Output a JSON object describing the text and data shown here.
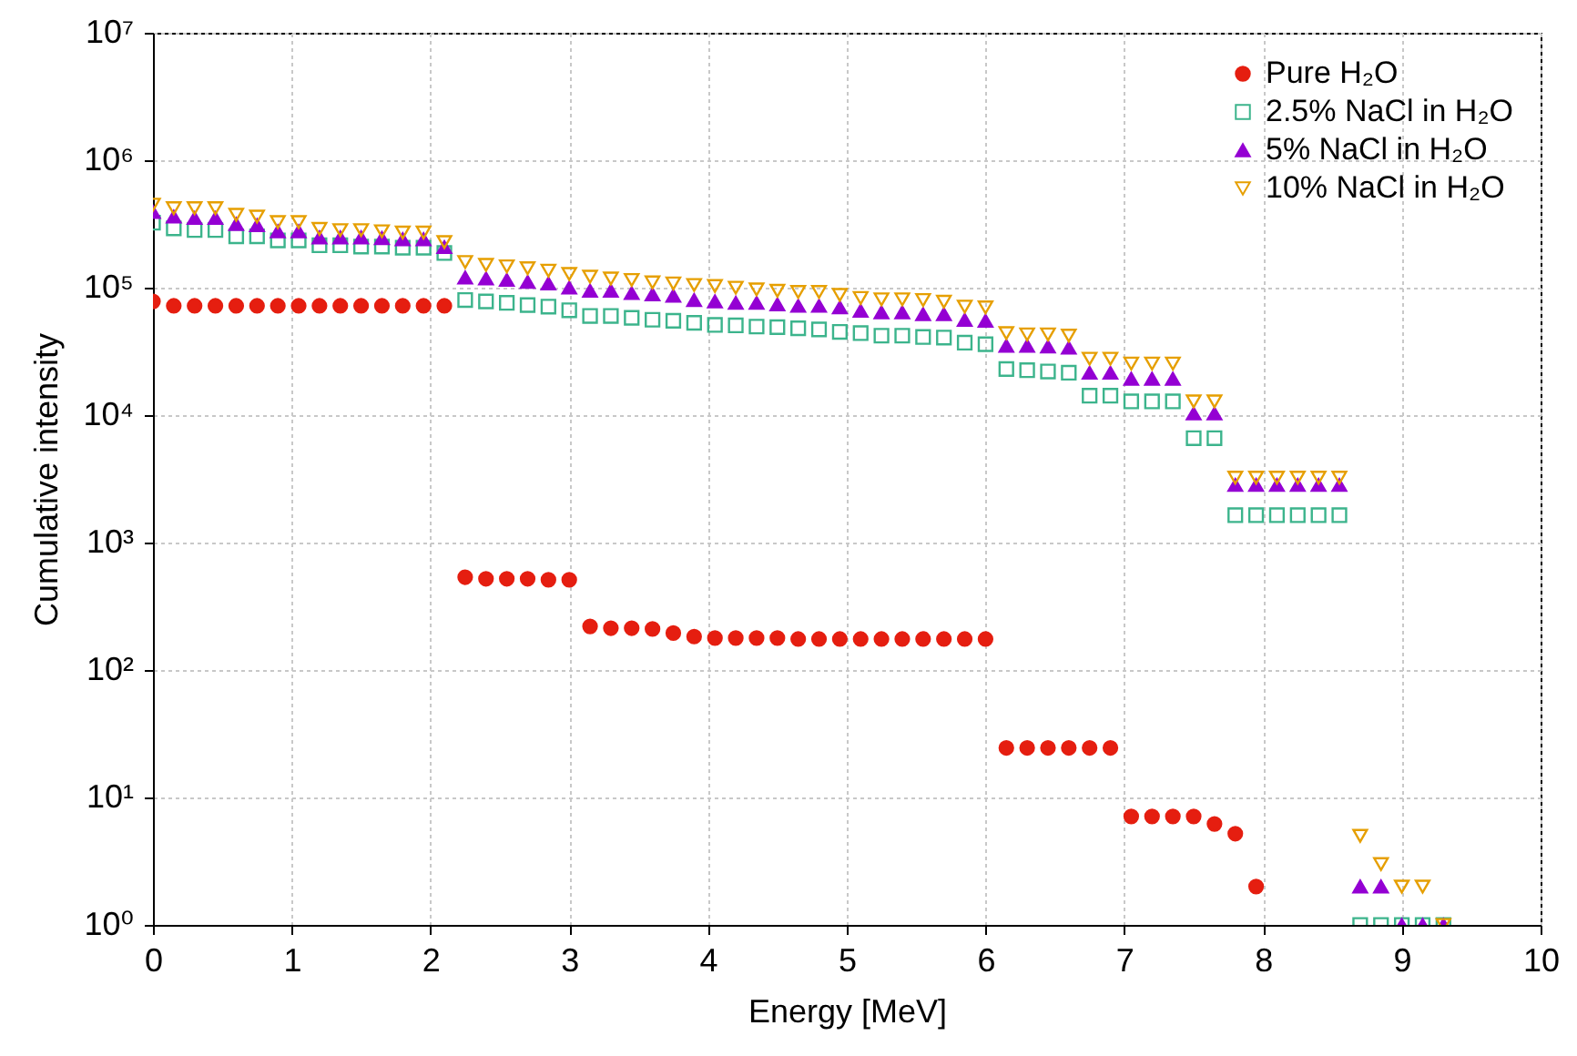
{
  "chart_data": {
    "type": "scatter",
    "xlabel": "Energy [MeV]",
    "ylabel": "Cumulative intensity",
    "xlim": [
      0,
      10
    ],
    "xticks": [
      0,
      1,
      2,
      3,
      4,
      5,
      6,
      7,
      8,
      9,
      10
    ],
    "ylim": [
      1,
      10000000
    ],
    "log": "y",
    "yticks": [
      {
        "value": 1,
        "label": "10⁰"
      },
      {
        "value": 10,
        "label": "10¹"
      },
      {
        "value": 100,
        "label": "10²"
      },
      {
        "value": 1000,
        "label": "10³"
      },
      {
        "value": 10000,
        "label": "10⁴"
      },
      {
        "value": 100000,
        "label": "10⁵"
      },
      {
        "value": 1000000,
        "label": "10⁶"
      },
      {
        "value": 10000000,
        "label": "10⁷"
      }
    ],
    "grid": true,
    "legend": "top right",
    "series": [
      {
        "name": "Pure H₂O",
        "color": "#e51e10",
        "marker": "circle",
        "x": [
          0,
          0.15,
          0.3,
          0.45,
          0.6,
          0.75,
          0.9,
          1.05,
          1.2,
          1.35,
          1.5,
          1.65,
          1.8,
          1.95,
          2.1,
          2.25,
          2.4,
          2.55,
          2.7,
          2.85,
          3.0,
          3.15,
          3.3,
          3.45,
          3.6,
          3.75,
          3.9,
          4.05,
          4.2,
          4.35,
          4.5,
          4.65,
          4.8,
          4.95,
          5.1,
          5.25,
          5.4,
          5.55,
          5.7,
          5.85,
          6.0,
          6.15,
          6.3,
          6.45,
          6.6,
          6.75,
          6.9,
          7.05,
          7.2,
          7.35,
          7.5,
          7.65,
          7.8,
          7.95
        ],
        "values": [
          78000,
          72000,
          72000,
          72000,
          72000,
          72000,
          72000,
          72000,
          72000,
          72000,
          72000,
          72000,
          72000,
          72000,
          72000,
          535,
          520,
          520,
          520,
          510,
          510,
          220,
          213,
          213,
          210,
          195,
          183,
          178,
          178,
          178,
          178,
          175,
          175,
          175,
          175,
          175,
          175,
          175,
          175,
          175,
          175,
          24.5,
          24.5,
          24.5,
          24.5,
          24.5,
          24.5,
          7.1,
          7.1,
          7.1,
          7.1,
          6.2,
          5.2,
          2
        ]
      },
      {
        "name": "2.5% NaCl in H₂O",
        "color": "#3cb48c",
        "marker": "square",
        "x": [
          0,
          0.15,
          0.3,
          0.45,
          0.6,
          0.75,
          0.9,
          1.05,
          1.2,
          1.35,
          1.5,
          1.65,
          1.8,
          1.95,
          2.1,
          2.25,
          2.4,
          2.55,
          2.7,
          2.85,
          3.0,
          3.15,
          3.3,
          3.45,
          3.6,
          3.75,
          3.9,
          4.05,
          4.2,
          4.35,
          4.5,
          4.65,
          4.8,
          4.95,
          5.1,
          5.25,
          5.4,
          5.55,
          5.7,
          5.85,
          6.0,
          6.15,
          6.3,
          6.45,
          6.6,
          6.75,
          6.9,
          7.05,
          7.2,
          7.35,
          7.5,
          7.65,
          7.8,
          7.95,
          8.1,
          8.25,
          8.4,
          8.55,
          8.7,
          8.85,
          9.0,
          9.15,
          9.3
        ],
        "values": [
          323000,
          292000,
          283000,
          283000,
          253000,
          253000,
          235000,
          235000,
          215000,
          215000,
          210000,
          210000,
          206000,
          206000,
          187000,
          80000,
          78000,
          76000,
          73000,
          71000,
          66500,
          60000,
          60000,
          58000,
          56000,
          55000,
          53000,
          51000,
          50600,
          49500,
          49000,
          48000,
          47000,
          45000,
          44000,
          42000,
          42000,
          41000,
          40600,
          37000,
          36000,
          23000,
          22500,
          22000,
          21500,
          14200,
          14200,
          12800,
          12800,
          12800,
          6600,
          6600,
          1640,
          1640,
          1640,
          1640,
          1640,
          1640,
          1,
          1,
          1,
          1,
          1
        ]
      },
      {
        "name": "5% NaCl in H₂O",
        "color": "#9400d3",
        "marker": "triangle",
        "x": [
          0,
          0.15,
          0.3,
          0.45,
          0.6,
          0.75,
          0.9,
          1.05,
          1.2,
          1.35,
          1.5,
          1.65,
          1.8,
          1.95,
          2.1,
          2.25,
          2.4,
          2.55,
          2.7,
          2.85,
          3.0,
          3.15,
          3.3,
          3.45,
          3.6,
          3.75,
          3.9,
          4.05,
          4.2,
          4.35,
          4.5,
          4.65,
          4.8,
          4.95,
          5.1,
          5.25,
          5.4,
          5.55,
          5.7,
          5.85,
          6.0,
          6.15,
          6.3,
          6.45,
          6.6,
          6.75,
          6.9,
          7.05,
          7.2,
          7.35,
          7.5,
          7.65,
          7.8,
          7.95,
          8.1,
          8.25,
          8.4,
          8.55,
          8.7,
          8.85,
          9.0,
          9.15,
          9.3
        ],
        "values": [
          393000,
          361000,
          352000,
          352000,
          316000,
          309000,
          277000,
          277000,
          248000,
          248000,
          248000,
          245000,
          240000,
          240000,
          208000,
          120000,
          118000,
          115000,
          111000,
          108000,
          100000,
          94600,
          94600,
          90600,
          88500,
          86500,
          80000,
          78000,
          76000,
          76000,
          74000,
          72000,
          72000,
          70000,
          66000,
          64000,
          64000,
          62000,
          62000,
          56000,
          55000,
          35000,
          35000,
          34500,
          33800,
          21500,
          21500,
          19300,
          19300,
          19300,
          10300,
          10300,
          2830,
          2830,
          2830,
          2830,
          2830,
          2830,
          2,
          2,
          1,
          1,
          1
        ]
      },
      {
        "name": "10% NaCl in H₂O",
        "color": "#e69f00",
        "marker": "triangle-down",
        "x": [
          0,
          0.15,
          0.3,
          0.45,
          0.6,
          0.75,
          0.9,
          1.05,
          1.2,
          1.35,
          1.5,
          1.65,
          1.8,
          1.95,
          2.1,
          2.25,
          2.4,
          2.55,
          2.7,
          2.85,
          3.0,
          3.15,
          3.3,
          3.45,
          3.6,
          3.75,
          3.9,
          4.05,
          4.2,
          4.35,
          4.5,
          4.65,
          4.8,
          4.95,
          5.1,
          5.25,
          5.4,
          5.55,
          5.7,
          5.85,
          6.0,
          6.15,
          6.3,
          6.45,
          6.6,
          6.75,
          6.9,
          7.05,
          7.2,
          7.35,
          7.5,
          7.65,
          7.8,
          7.95,
          8.1,
          8.25,
          8.4,
          8.55,
          8.7,
          8.85,
          9.0,
          9.15,
          9.3
        ],
        "values": [
          448000,
          420000,
          420000,
          420000,
          373000,
          361000,
          327000,
          327000,
          289000,
          283000,
          283000,
          277000,
          271000,
          271000,
          228000,
          159000,
          151000,
          147000,
          142000,
          136000,
          128000,
          122000,
          118000,
          115000,
          110000,
          108000,
          105000,
          103000,
          100000,
          96800,
          94600,
          92500,
          92500,
          87700,
          83000,
          81000,
          81000,
          80000,
          77600,
          71000,
          70000,
          44000,
          43000,
          43000,
          42000,
          27700,
          27700,
          25400,
          25400,
          25400,
          12800,
          12800,
          3230,
          3230,
          3230,
          3230,
          3230,
          3230,
          5,
          3,
          2,
          2,
          1
        ]
      }
    ]
  }
}
